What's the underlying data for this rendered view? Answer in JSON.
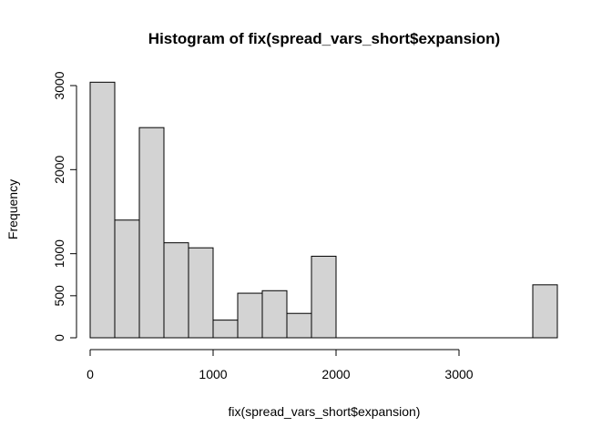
{
  "chart_data": {
    "type": "bar",
    "title": "Histogram of fix(spread_vars_short$expansion)",
    "xlabel": "fix(spread_vars_short$expansion)",
    "ylabel": "Frequency",
    "bin_edges": [
      0,
      200,
      400,
      600,
      800,
      1000,
      1200,
      1400,
      1600,
      1800,
      2000,
      2200,
      2400,
      2600,
      2800,
      3000,
      3200,
      3400,
      3600,
      3800
    ],
    "values": [
      3040,
      1400,
      2500,
      1130,
      1070,
      210,
      530,
      560,
      290,
      970,
      0,
      0,
      0,
      0,
      0,
      0,
      0,
      0,
      630
    ],
    "xlim": [
      0,
      3800
    ],
    "ylim": [
      0,
      3000
    ],
    "x_ticks": [
      0,
      1000,
      2000,
      3000
    ],
    "x_tick_labels": [
      "0",
      "1000",
      "2000",
      "3000"
    ],
    "y_ticks": [
      0,
      500,
      1000,
      2000,
      3000
    ],
    "y_tick_labels": [
      "0",
      "500",
      "1000",
      "2000",
      "3000"
    ],
    "bar_fill": "#d3d3d3",
    "bar_stroke": "#000000",
    "grid": false
  }
}
